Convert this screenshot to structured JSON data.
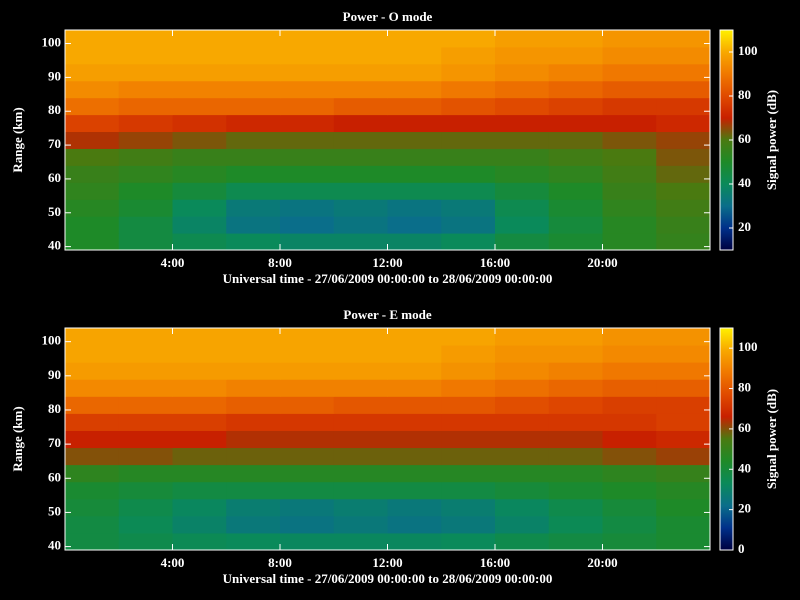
{
  "chart_data": [
    {
      "type": "heatmap",
      "title": "Power - O mode",
      "xlabel": "Universal time - 27/06/2009 00:00:00 to 28/06/2009 00:00:00",
      "ylabel": "Range (km)",
      "colorbar_label": "Signal power (dB)",
      "xbins": [
        0,
        2,
        4,
        6,
        8,
        10,
        12,
        14,
        16,
        18,
        20,
        22,
        24
      ],
      "ybins": [
        39,
        44,
        49,
        54,
        59,
        64,
        69,
        74,
        79,
        84,
        89,
        94,
        99,
        104
      ],
      "xlim": [
        0,
        24
      ],
      "ylim": [
        39,
        104
      ],
      "xticks": [
        {
          "value": 4,
          "label": "4:00"
        },
        {
          "value": 8,
          "label": "8:00"
        },
        {
          "value": 12,
          "label": "12:00"
        },
        {
          "value": 16,
          "label": "16:00"
        },
        {
          "value": 20,
          "label": "20:00"
        }
      ],
      "yticks": [
        40,
        50,
        60,
        70,
        80,
        90,
        100
      ],
      "clim": [
        10,
        110
      ],
      "cticks": [
        20,
        40,
        60,
        80,
        100
      ],
      "colorscale": [
        "#000040",
        "#00308a",
        "#0a6e8a",
        "#0a8a5a",
        "#1e8a28",
        "#4a7a10",
        "#c82000",
        "#e04a00",
        "#f07800",
        "#f8a800",
        "#fff000"
      ],
      "z": [
        [
          50,
          45,
          42,
          40,
          38,
          38,
          38,
          40,
          45,
          48,
          52,
          55
        ],
        [
          50,
          45,
          38,
          32,
          30,
          32,
          30,
          32,
          40,
          46,
          52,
          56
        ],
        [
          52,
          48,
          40,
          34,
          32,
          34,
          32,
          34,
          42,
          48,
          54,
          58
        ],
        [
          54,
          50,
          46,
          42,
          42,
          42,
          42,
          42,
          46,
          50,
          56,
          60
        ],
        [
          56,
          54,
          52,
          50,
          50,
          50,
          50,
          50,
          52,
          54,
          58,
          62
        ],
        [
          60,
          58,
          56,
          56,
          56,
          56,
          56,
          56,
          56,
          58,
          60,
          64
        ],
        [
          68,
          66,
          64,
          62,
          62,
          62,
          62,
          62,
          62,
          62,
          64,
          66
        ],
        [
          78,
          76,
          74,
          72,
          72,
          70,
          70,
          70,
          70,
          70,
          70,
          72
        ],
        [
          88,
          86,
          86,
          86,
          86,
          84,
          84,
          82,
          80,
          78,
          76,
          76
        ],
        [
          94,
          92,
          92,
          92,
          92,
          92,
          92,
          90,
          88,
          86,
          84,
          84
        ],
        [
          98,
          98,
          98,
          98,
          98,
          98,
          98,
          96,
          94,
          92,
          90,
          90
        ],
        [
          100,
          100,
          100,
          100,
          100,
          100,
          100,
          98,
          96,
          96,
          94,
          94
        ],
        [
          100,
          100,
          100,
          100,
          100,
          100,
          100,
          100,
          98,
          98,
          96,
          96
        ]
      ]
    },
    {
      "type": "heatmap",
      "title": "Power - E mode",
      "xlabel": "Universal time - 27/06/2009 00:00:00 to 28/06/2009 00:00:00",
      "ylabel": "Range (km)",
      "colorbar_label": "Signal power (dB)",
      "xbins": [
        0,
        2,
        4,
        6,
        8,
        10,
        12,
        14,
        16,
        18,
        20,
        22,
        24
      ],
      "ybins": [
        39,
        44,
        49,
        54,
        59,
        64,
        69,
        74,
        79,
        84,
        89,
        94,
        99,
        104
      ],
      "xlim": [
        0,
        24
      ],
      "ylim": [
        39,
        104
      ],
      "xticks": [
        {
          "value": 4,
          "label": "4:00"
        },
        {
          "value": 8,
          "label": "8:00"
        },
        {
          "value": 12,
          "label": "12:00"
        },
        {
          "value": 16,
          "label": "16:00"
        },
        {
          "value": 20,
          "label": "20:00"
        }
      ],
      "yticks": [
        40,
        50,
        60,
        70,
        80,
        90,
        100
      ],
      "clim": [
        0,
        110
      ],
      "cticks": [
        0,
        20,
        40,
        60,
        80,
        100
      ],
      "colorscale": [
        "#000040",
        "#00308a",
        "#0a6e8a",
        "#0a8a5a",
        "#1e8a28",
        "#4a7a10",
        "#c82000",
        "#e04a00",
        "#f07800",
        "#f8a800",
        "#fff000"
      ],
      "z": [
        [
          38,
          36,
          34,
          33,
          32,
          32,
          32,
          33,
          36,
          38,
          40,
          42
        ],
        [
          38,
          34,
          30,
          26,
          24,
          26,
          24,
          26,
          30,
          34,
          38,
          42
        ],
        [
          40,
          36,
          32,
          28,
          26,
          28,
          26,
          28,
          32,
          36,
          40,
          44
        ],
        [
          42,
          40,
          38,
          38,
          38,
          38,
          38,
          38,
          40,
          42,
          44,
          46
        ],
        [
          48,
          46,
          46,
          46,
          46,
          46,
          46,
          46,
          46,
          46,
          48,
          50
        ],
        [
          60,
          60,
          58,
          58,
          58,
          58,
          58,
          58,
          58,
          58,
          60,
          62
        ],
        [
          66,
          66,
          66,
          64,
          64,
          64,
          64,
          64,
          64,
          64,
          66,
          68
        ],
        [
          74,
          74,
          74,
          72,
          72,
          72,
          72,
          72,
          72,
          72,
          72,
          74
        ],
        [
          84,
          84,
          84,
          82,
          82,
          80,
          80,
          80,
          78,
          76,
          74,
          74
        ],
        [
          92,
          92,
          92,
          90,
          90,
          90,
          90,
          88,
          86,
          84,
          82,
          82
        ],
        [
          96,
          96,
          96,
          96,
          96,
          96,
          96,
          94,
          92,
          90,
          88,
          88
        ],
        [
          98,
          98,
          98,
          98,
          98,
          98,
          98,
          96,
          94,
          94,
          92,
          92
        ],
        [
          98,
          98,
          98,
          98,
          98,
          98,
          98,
          98,
          96,
          96,
          94,
          94
        ]
      ]
    }
  ]
}
